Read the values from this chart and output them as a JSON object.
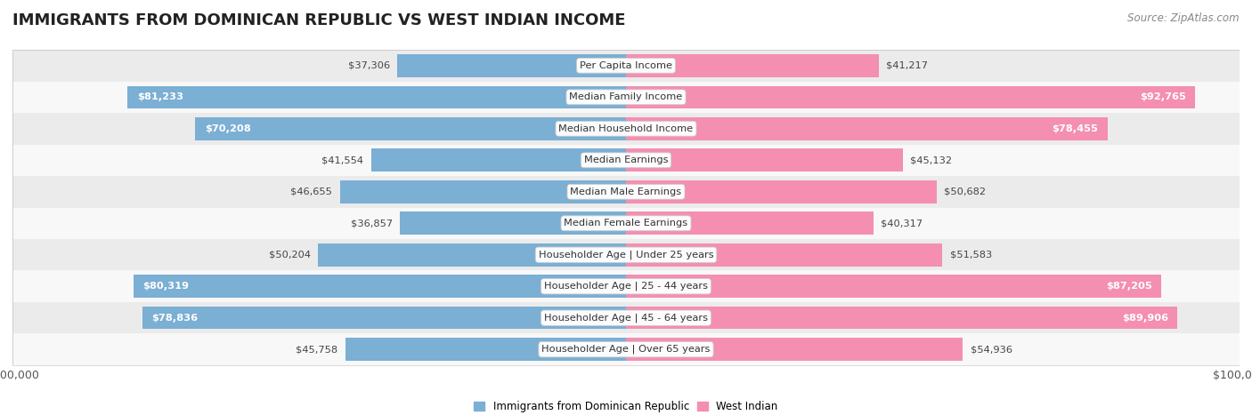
{
  "title": "IMMIGRANTS FROM DOMINICAN REPUBLIC VS WEST INDIAN INCOME",
  "source": "Source: ZipAtlas.com",
  "categories": [
    "Per Capita Income",
    "Median Family Income",
    "Median Household Income",
    "Median Earnings",
    "Median Male Earnings",
    "Median Female Earnings",
    "Householder Age | Under 25 years",
    "Householder Age | 25 - 44 years",
    "Householder Age | 45 - 64 years",
    "Householder Age | Over 65 years"
  ],
  "dominican": [
    37306,
    81233,
    70208,
    41554,
    46655,
    36857,
    50204,
    80319,
    78836,
    45758
  ],
  "west_indian": [
    41217,
    92765,
    78455,
    45132,
    50682,
    40317,
    51583,
    87205,
    89906,
    54936
  ],
  "dominican_labels": [
    "$37,306",
    "$81,233",
    "$70,208",
    "$41,554",
    "$46,655",
    "$36,857",
    "$50,204",
    "$80,319",
    "$78,836",
    "$45,758"
  ],
  "west_indian_labels": [
    "$41,217",
    "$92,765",
    "$78,455",
    "$45,132",
    "$50,682",
    "$40,317",
    "$51,583",
    "$87,205",
    "$89,906",
    "$54,936"
  ],
  "color_dominican": "#7bafd4",
  "color_west_indian": "#f48fb1",
  "background_row_light": "#ebebeb",
  "background_row_white": "#f8f8f8",
  "axis_max": 100000,
  "bar_height": 0.72,
  "legend_label_dominican": "Immigrants from Dominican Republic",
  "legend_label_west_indian": "West Indian",
  "title_fontsize": 13,
  "label_fontsize": 8.2,
  "tick_fontsize": 9,
  "source_fontsize": 8.5
}
